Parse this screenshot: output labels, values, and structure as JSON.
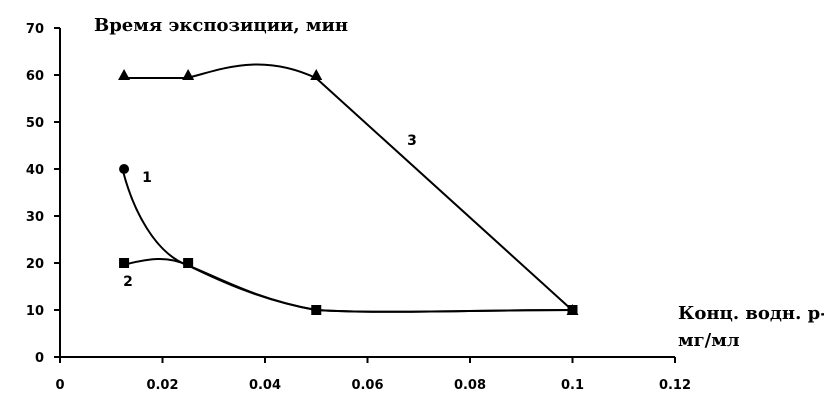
{
  "chart_data": {
    "type": "line",
    "title": "",
    "ylabel": "Время экспозиции, мин",
    "xlabel_lines": [
      "Конц. водн. р-ра,",
      "мг/мл"
    ],
    "xlim": [
      0,
      0.12
    ],
    "ylim": [
      0,
      70
    ],
    "x_ticks": [
      0,
      0.02,
      0.04,
      0.06,
      0.08,
      0.1,
      0.12
    ],
    "x_tick_labels": [
      "0",
      "0.02",
      "0.04",
      "0.06",
      "0.08",
      "0.1",
      "0.12"
    ],
    "y_ticks": [
      0,
      10,
      20,
      30,
      40,
      50,
      60,
      70
    ],
    "y_tick_labels": [
      "0",
      "10",
      "20",
      "30",
      "40",
      "50",
      "60",
      "70"
    ],
    "grid": false,
    "series": [
      {
        "name": "1",
        "marker": "circle",
        "x": [
          0.0125,
          0.025,
          0.05,
          0.1
        ],
        "y": [
          40,
          20,
          10,
          10
        ]
      },
      {
        "name": "2",
        "marker": "square",
        "x": [
          0.0125,
          0.025,
          0.05,
          0.1
        ],
        "y": [
          20,
          20,
          10,
          10
        ]
      },
      {
        "name": "3",
        "marker": "triangle",
        "x": [
          0.0125,
          0.025,
          0.05,
          0.1
        ],
        "y": [
          60,
          60,
          60,
          10
        ]
      }
    ]
  }
}
